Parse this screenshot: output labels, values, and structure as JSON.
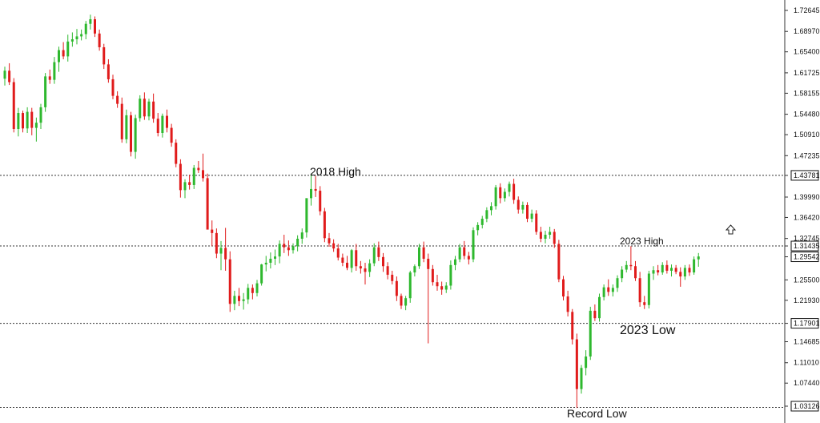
{
  "chart_data": {
    "type": "candlestick",
    "y_axis_position": "right",
    "ylim": [
      1.03126,
      1.74645
    ],
    "ticks": [
      "1.72645",
      "1.68970",
      "1.65400",
      "1.61725",
      "1.58155",
      "1.54480",
      "1.50910",
      "1.47235",
      "1.43781",
      "1.39990",
      "1.36420",
      "1.32745",
      "1.31435",
      "1.29542",
      "1.25500",
      "1.21930",
      "1.17901",
      "1.14685",
      "1.11010",
      "1.07440",
      "1.03126"
    ],
    "boxed_ticks": [
      "1.43781",
      "1.31435",
      "1.29542",
      "1.17901",
      "1.03126"
    ],
    "colors": {
      "up": "#2eb82e",
      "down": "#e01b1b",
      "level_line": "#333333"
    },
    "levels": [
      {
        "value": 1.43781,
        "label": "2018 High",
        "label_x": 148
      },
      {
        "value": 1.31435,
        "label": "2023 High",
        "label_x": 308
      },
      {
        "value": 1.17901,
        "label": "2023 Low",
        "label_x": 308
      },
      {
        "value": 1.03126,
        "label": "Record Low",
        "label_x": 278
      }
    ],
    "arrow_icon": "up-arrow-icon",
    "candles": [
      [
        1.607,
        1.628,
        1.595,
        1.621
      ],
      [
        1.621,
        1.634,
        1.596,
        1.601
      ],
      [
        1.601,
        1.608,
        1.513,
        1.519
      ],
      [
        1.519,
        1.556,
        1.506,
        1.547
      ],
      [
        1.547,
        1.551,
        1.513,
        1.52
      ],
      [
        1.52,
        1.557,
        1.512,
        1.549
      ],
      [
        1.549,
        1.556,
        1.508,
        1.521
      ],
      [
        1.521,
        1.539,
        1.497,
        1.53
      ],
      [
        1.53,
        1.563,
        1.519,
        1.557
      ],
      [
        1.557,
        1.617,
        1.549,
        1.611
      ],
      [
        1.611,
        1.623,
        1.598,
        1.605
      ],
      [
        1.605,
        1.645,
        1.598,
        1.636
      ],
      [
        1.636,
        1.663,
        1.619,
        1.657
      ],
      [
        1.657,
        1.671,
        1.641,
        1.646
      ],
      [
        1.646,
        1.684,
        1.637,
        1.672
      ],
      [
        1.672,
        1.688,
        1.663,
        1.676
      ],
      [
        1.676,
        1.694,
        1.667,
        1.681
      ],
      [
        1.681,
        1.693,
        1.674,
        1.685
      ],
      [
        1.685,
        1.708,
        1.676,
        1.703
      ],
      [
        1.703,
        1.719,
        1.693,
        1.711
      ],
      [
        1.711,
        1.716,
        1.68,
        1.686
      ],
      [
        1.686,
        1.693,
        1.656,
        1.662
      ],
      [
        1.662,
        1.668,
        1.624,
        1.632
      ],
      [
        1.632,
        1.641,
        1.6,
        1.606
      ],
      [
        1.606,
        1.614,
        1.571,
        1.577
      ],
      [
        1.577,
        1.585,
        1.556,
        1.563
      ],
      [
        1.563,
        1.574,
        1.495,
        1.501
      ],
      [
        1.501,
        1.553,
        1.494,
        1.543
      ],
      [
        1.543,
        1.549,
        1.471,
        1.479
      ],
      [
        1.479,
        1.544,
        1.467,
        1.538
      ],
      [
        1.538,
        1.578,
        1.532,
        1.572
      ],
      [
        1.572,
        1.583,
        1.535,
        1.541
      ],
      [
        1.541,
        1.572,
        1.534,
        1.567
      ],
      [
        1.567,
        1.581,
        1.53,
        1.537
      ],
      [
        1.537,
        1.547,
        1.506,
        1.512
      ],
      [
        1.512,
        1.546,
        1.504,
        1.542
      ],
      [
        1.542,
        1.553,
        1.513,
        1.521
      ],
      [
        1.521,
        1.528,
        1.488,
        1.495
      ],
      [
        1.495,
        1.501,
        1.452,
        1.458
      ],
      [
        1.458,
        1.466,
        1.399,
        1.412
      ],
      [
        1.412,
        1.431,
        1.398,
        1.426
      ],
      [
        1.426,
        1.439,
        1.413,
        1.421
      ],
      [
        1.421,
        1.456,
        1.414,
        1.451
      ],
      [
        1.451,
        1.463,
        1.442,
        1.447
      ],
      [
        1.447,
        1.476,
        1.427,
        1.433
      ],
      [
        1.433,
        1.441,
        1.35,
        1.343
      ],
      [
        1.343,
        1.359,
        1.314,
        1.337
      ],
      [
        1.337,
        1.345,
        1.293,
        1.301
      ],
      [
        1.301,
        1.323,
        1.272,
        1.311
      ],
      [
        1.311,
        1.346,
        1.271,
        1.291
      ],
      [
        1.291,
        1.305,
        1.199,
        1.213
      ],
      [
        1.213,
        1.236,
        1.202,
        1.227
      ],
      [
        1.227,
        1.241,
        1.209,
        1.218
      ],
      [
        1.218,
        1.232,
        1.203,
        1.221
      ],
      [
        1.221,
        1.248,
        1.213,
        1.241
      ],
      [
        1.241,
        1.247,
        1.221,
        1.232
      ],
      [
        1.232,
        1.255,
        1.226,
        1.249
      ],
      [
        1.249,
        1.283,
        1.245,
        1.282
      ],
      [
        1.282,
        1.297,
        1.27,
        1.285
      ],
      [
        1.285,
        1.303,
        1.275,
        1.292
      ],
      [
        1.292,
        1.308,
        1.281,
        1.296
      ],
      [
        1.296,
        1.324,
        1.284,
        1.318
      ],
      [
        1.318,
        1.334,
        1.302,
        1.312
      ],
      [
        1.312,
        1.324,
        1.297,
        1.307
      ],
      [
        1.307,
        1.319,
        1.301,
        1.314
      ],
      [
        1.314,
        1.333,
        1.305,
        1.327
      ],
      [
        1.327,
        1.345,
        1.318,
        1.338
      ],
      [
        1.338,
        1.392,
        1.329,
        1.398
      ],
      [
        1.398,
        1.441,
        1.385,
        1.414
      ],
      [
        1.414,
        1.437,
        1.4,
        1.411
      ],
      [
        1.411,
        1.419,
        1.368,
        1.375
      ],
      [
        1.375,
        1.381,
        1.321,
        1.328
      ],
      [
        1.328,
        1.337,
        1.313,
        1.319
      ],
      [
        1.319,
        1.326,
        1.304,
        1.31
      ],
      [
        1.31,
        1.318,
        1.289,
        1.294
      ],
      [
        1.294,
        1.301,
        1.279,
        1.285
      ],
      [
        1.285,
        1.297,
        1.272,
        1.276
      ],
      [
        1.276,
        1.309,
        1.268,
        1.307
      ],
      [
        1.307,
        1.318,
        1.271,
        1.279
      ],
      [
        1.279,
        1.288,
        1.266,
        1.275
      ],
      [
        1.275,
        1.285,
        1.247,
        1.269
      ],
      [
        1.269,
        1.291,
        1.26,
        1.284
      ],
      [
        1.284,
        1.319,
        1.279,
        1.312
      ],
      [
        1.312,
        1.322,
        1.288,
        1.295
      ],
      [
        1.295,
        1.302,
        1.269,
        1.279
      ],
      [
        1.279,
        1.286,
        1.256,
        1.264
      ],
      [
        1.264,
        1.271,
        1.247,
        1.253
      ],
      [
        1.253,
        1.261,
        1.218,
        1.227
      ],
      [
        1.227,
        1.231,
        1.204,
        1.21
      ],
      [
        1.21,
        1.227,
        1.202,
        1.223
      ],
      [
        1.223,
        1.271,
        1.215,
        1.268
      ],
      [
        1.268,
        1.282,
        1.261,
        1.279
      ],
      [
        1.279,
        1.318,
        1.274,
        1.312
      ],
      [
        1.312,
        1.322,
        1.286,
        1.292
      ],
      [
        1.292,
        1.301,
        1.144,
        1.274
      ],
      [
        1.274,
        1.281,
        1.245,
        1.251
      ],
      [
        1.251,
        1.264,
        1.236,
        1.244
      ],
      [
        1.244,
        1.252,
        1.229,
        1.238
      ],
      [
        1.238,
        1.251,
        1.232,
        1.245
      ],
      [
        1.245,
        1.289,
        1.238,
        1.281
      ],
      [
        1.281,
        1.297,
        1.272,
        1.291
      ],
      [
        1.291,
        1.318,
        1.286,
        1.312
      ],
      [
        1.312,
        1.323,
        1.291,
        1.297
      ],
      [
        1.297,
        1.304,
        1.282,
        1.291
      ],
      [
        1.291,
        1.347,
        1.286,
        1.342
      ],
      [
        1.342,
        1.356,
        1.333,
        1.351
      ],
      [
        1.351,
        1.367,
        1.345,
        1.362
      ],
      [
        1.362,
        1.382,
        1.356,
        1.377
      ],
      [
        1.377,
        1.391,
        1.368,
        1.384
      ],
      [
        1.384,
        1.421,
        1.378,
        1.417
      ],
      [
        1.417,
        1.424,
        1.389,
        1.398
      ],
      [
        1.398,
        1.415,
        1.392,
        1.409
      ],
      [
        1.409,
        1.427,
        1.401,
        1.423
      ],
      [
        1.423,
        1.432,
        1.388,
        1.395
      ],
      [
        1.395,
        1.401,
        1.371,
        1.378
      ],
      [
        1.378,
        1.392,
        1.371,
        1.386
      ],
      [
        1.386,
        1.391,
        1.356,
        1.362
      ],
      [
        1.362,
        1.378,
        1.356,
        1.371
      ],
      [
        1.371,
        1.377,
        1.334,
        1.339
      ],
      [
        1.339,
        1.348,
        1.321,
        1.327
      ],
      [
        1.327,
        1.341,
        1.319,
        1.334
      ],
      [
        1.334,
        1.348,
        1.327,
        1.339
      ],
      [
        1.339,
        1.344,
        1.311,
        1.318
      ],
      [
        1.318,
        1.325,
        1.251,
        1.256
      ],
      [
        1.256,
        1.262,
        1.219,
        1.226
      ],
      [
        1.226,
        1.236,
        1.191,
        1.199
      ],
      [
        1.199,
        1.204,
        1.142,
        1.151
      ],
      [
        1.151,
        1.161,
        1.031,
        1.064
      ],
      [
        1.064,
        1.106,
        1.056,
        1.101
      ],
      [
        1.101,
        1.132,
        1.088,
        1.121
      ],
      [
        1.121,
        1.208,
        1.115,
        1.201
      ],
      [
        1.201,
        1.212,
        1.183,
        1.188
      ],
      [
        1.188,
        1.231,
        1.182,
        1.225
      ],
      [
        1.225,
        1.247,
        1.219,
        1.242
      ],
      [
        1.242,
        1.256,
        1.227,
        1.234
      ],
      [
        1.234,
        1.247,
        1.226,
        1.241
      ],
      [
        1.241,
        1.263,
        1.234,
        1.258
      ],
      [
        1.258,
        1.279,
        1.251,
        1.273
      ],
      [
        1.273,
        1.288,
        1.268,
        1.281
      ],
      [
        1.281,
        1.314,
        1.272,
        1.279
      ],
      [
        1.279,
        1.288,
        1.253,
        1.258
      ],
      [
        1.258,
        1.269,
        1.208,
        1.216
      ],
      [
        1.216,
        1.227,
        1.204,
        1.211
      ],
      [
        1.211,
        1.271,
        1.205,
        1.266
      ],
      [
        1.266,
        1.279,
        1.255,
        1.272
      ],
      [
        1.272,
        1.281,
        1.263,
        1.268
      ],
      [
        1.268,
        1.286,
        1.264,
        1.281
      ],
      [
        1.281,
        1.289,
        1.266,
        1.271
      ],
      [
        1.271,
        1.282,
        1.261,
        1.276
      ],
      [
        1.276,
        1.281,
        1.265,
        1.269
      ],
      [
        1.269,
        1.277,
        1.243,
        1.261
      ],
      [
        1.261,
        1.281,
        1.255,
        1.276
      ],
      [
        1.276,
        1.282,
        1.262,
        1.268
      ],
      [
        1.268,
        1.296,
        1.264,
        1.291
      ],
      [
        1.291,
        1.302,
        1.278,
        1.296
      ]
    ]
  }
}
